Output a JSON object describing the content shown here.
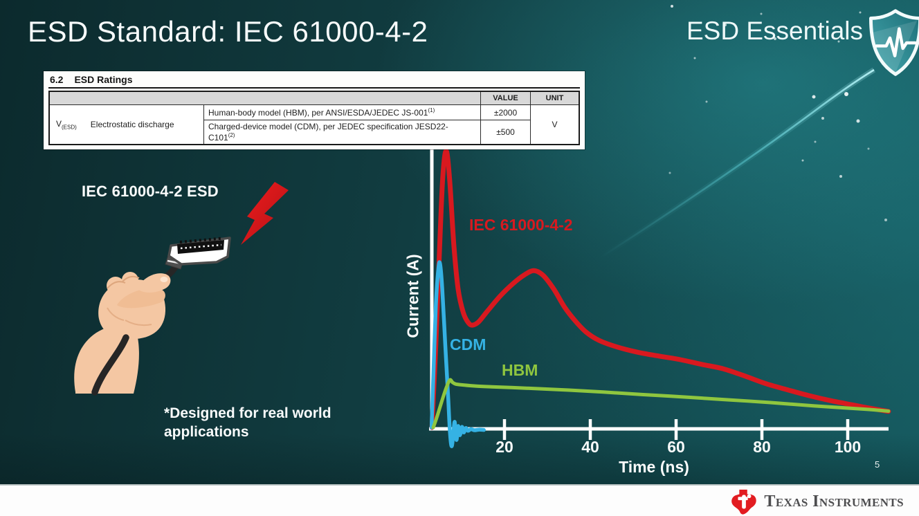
{
  "slide": {
    "title": "ESD Standard: IEC 61000-4-2",
    "brand": "ESD Essentials",
    "page_number": "5",
    "colors": {
      "background_dark": "#0c2a2d",
      "background_light": "#14565b",
      "accent_streak": "#7fe7ee",
      "footer_bg": "#fdfdfd",
      "ti_red": "#e21c21"
    }
  },
  "ratings_table": {
    "section_number": "6.2",
    "section_title": "ESD Ratings",
    "headers": {
      "value": "VALUE",
      "unit": "UNIT"
    },
    "param": {
      "symbol": "V",
      "symbol_sub": "(ESD)",
      "name": "Electrostatic discharge"
    },
    "rows": [
      {
        "description": "Human-body model (HBM), per ANSI/ESDA/JEDEC JS-001",
        "footnote_ref": "(1)",
        "value": "±2000"
      },
      {
        "description": "Charged-device model (CDM), per JEDEC specification JESD22-C101",
        "footnote_ref": "(2)",
        "value": "±500"
      }
    ],
    "unit": "V"
  },
  "illustration": {
    "label": "IEC 61000-4-2 ESD",
    "footnote": "*Designed for real world applications"
  },
  "footer": {
    "logo_text": "Texas Instruments"
  },
  "chart_data": {
    "type": "line",
    "title": "",
    "xlabel": "Time (ns)",
    "ylabel": "Current (A)",
    "x_ticks": [
      20,
      40,
      60,
      80,
      100
    ],
    "x_range": [
      3,
      110
    ],
    "y_axis": "unlabeled; relative current, 1.0 = IEC 61000-4-2 first peak",
    "grid": false,
    "legend": "inline colored labels next to curves",
    "series": [
      {
        "name": "IEC 61000-4-2",
        "color": "#d8191f",
        "points": [
          [
            3.1,
            0
          ],
          [
            4.0,
            0.3
          ],
          [
            4.8,
            0.62
          ],
          [
            5.6,
            0.9
          ],
          [
            6.4,
            1.0
          ],
          [
            7.2,
            0.9
          ],
          [
            8.2,
            0.66
          ],
          [
            9.2,
            0.5
          ],
          [
            10.4,
            0.415
          ],
          [
            11.6,
            0.378
          ],
          [
            12.6,
            0.37
          ],
          [
            14.0,
            0.382
          ],
          [
            16,
            0.42
          ],
          [
            19,
            0.475
          ],
          [
            22,
            0.52
          ],
          [
            24.5,
            0.55
          ],
          [
            26.8,
            0.567
          ],
          [
            29,
            0.55
          ],
          [
            31.5,
            0.5
          ],
          [
            34,
            0.435
          ],
          [
            36.5,
            0.385
          ],
          [
            39,
            0.345
          ],
          [
            42,
            0.315
          ],
          [
            46,
            0.292
          ],
          [
            51,
            0.272
          ],
          [
            56,
            0.258
          ],
          [
            61,
            0.245
          ],
          [
            66,
            0.228
          ],
          [
            71,
            0.212
          ],
          [
            76,
            0.186
          ],
          [
            81,
            0.158
          ],
          [
            86,
            0.136
          ],
          [
            91,
            0.115
          ],
          [
            96,
            0.097
          ],
          [
            101,
            0.082
          ],
          [
            105,
            0.07
          ],
          [
            109.5,
            0.058
          ]
        ]
      },
      {
        "name": "CDM",
        "color": "#35b2e4",
        "points": [
          [
            3.0,
            0
          ],
          [
            3.5,
            0.22
          ],
          [
            4.0,
            0.44
          ],
          [
            4.6,
            0.575
          ],
          [
            5.0,
            0.59
          ],
          [
            5.5,
            0.5
          ],
          [
            6.2,
            0.3
          ],
          [
            6.9,
            0.1
          ],
          [
            7.3,
            -0.02
          ],
          [
            7.7,
            -0.068
          ],
          [
            8.1,
            -0.02
          ],
          [
            8.4,
            0.02
          ],
          [
            8.8,
            -0.045
          ],
          [
            9.2,
            0.005
          ],
          [
            9.6,
            -0.028
          ],
          [
            10.1,
            0.002
          ],
          [
            10.5,
            -0.018
          ],
          [
            11.0,
            -0.002
          ],
          [
            11.5,
            -0.012
          ],
          [
            12.2,
            -0.006
          ],
          [
            13.0,
            -0.01
          ],
          [
            14.0,
            -0.008
          ],
          [
            15.2,
            -0.009
          ]
        ]
      },
      {
        "name": "HBM",
        "color": "#8fc63f",
        "points": [
          [
            3.4,
            0
          ],
          [
            4.2,
            0.035
          ],
          [
            5.0,
            0.075
          ],
          [
            5.8,
            0.115
          ],
          [
            6.6,
            0.15
          ],
          [
            7.3,
            0.172
          ],
          [
            7.9,
            0.163
          ],
          [
            8.6,
            0.157
          ],
          [
            10,
            0.154
          ],
          [
            13,
            0.15
          ],
          [
            17,
            0.147
          ],
          [
            22,
            0.144
          ],
          [
            28,
            0.14
          ],
          [
            35,
            0.135
          ],
          [
            43,
            0.128
          ],
          [
            52,
            0.119
          ],
          [
            62,
            0.11
          ],
          [
            72,
            0.1
          ],
          [
            82,
            0.09
          ],
          [
            92,
            0.078
          ],
          [
            100,
            0.07
          ],
          [
            105,
            0.065
          ],
          [
            109.5,
            0.059
          ]
        ]
      }
    ]
  }
}
